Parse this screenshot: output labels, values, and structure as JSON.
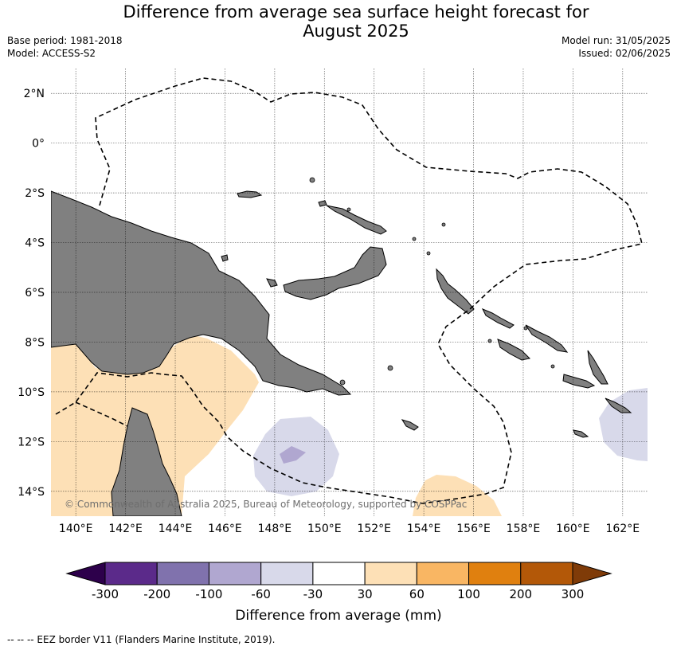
{
  "title_line1": "Difference from average sea surface height forecast for",
  "title_line2": "August 2025",
  "meta": {
    "base_period": "Base period: 1981-2018",
    "model": "Model: ACCESS-S2",
    "model_run": "Model run: 31/05/2025",
    "issued": "Issued: 02/06/2025"
  },
  "map": {
    "lon_ticks": [
      "140°E",
      "142°E",
      "144°E",
      "146°E",
      "148°E",
      "150°E",
      "152°E",
      "154°E",
      "156°E",
      "158°E",
      "160°E",
      "162°E"
    ],
    "lon_values": [
      140,
      142,
      144,
      146,
      148,
      150,
      152,
      154,
      156,
      158,
      160,
      162
    ],
    "lat_ticks": [
      "2°N",
      "0°",
      "2°S",
      "4°S",
      "6°S",
      "8°S",
      "10°S",
      "12°S",
      "14°S"
    ],
    "lat_values": [
      2,
      0,
      -2,
      -4,
      -6,
      -8,
      -10,
      -12,
      -14
    ],
    "lon_range": [
      139,
      163
    ],
    "lat_range": [
      -15,
      3
    ],
    "land_color": "#808080",
    "grid": true,
    "copyright": "© Commonwealth of Australia 2025, Bureau of Meteorology, supported by COSPPac"
  },
  "colorbar": {
    "labels": [
      "-300",
      "-200",
      "-100",
      "-60",
      "-30",
      "30",
      "60",
      "100",
      "200",
      "300"
    ],
    "colors": [
      "#5b2a8a",
      "#8072ad",
      "#b0a7d0",
      "#d8d9ea",
      "#ffffff",
      "#fde0b6",
      "#f9b663",
      "#e0800f",
      "#b35808"
    ],
    "extend_low_color": "#2d004b",
    "extend_high_color": "#7f3b08",
    "label": "Difference from average (mm)"
  },
  "footer": "--  --  -- EEZ border V11 (Flanders Marine Institute, 2019)."
}
